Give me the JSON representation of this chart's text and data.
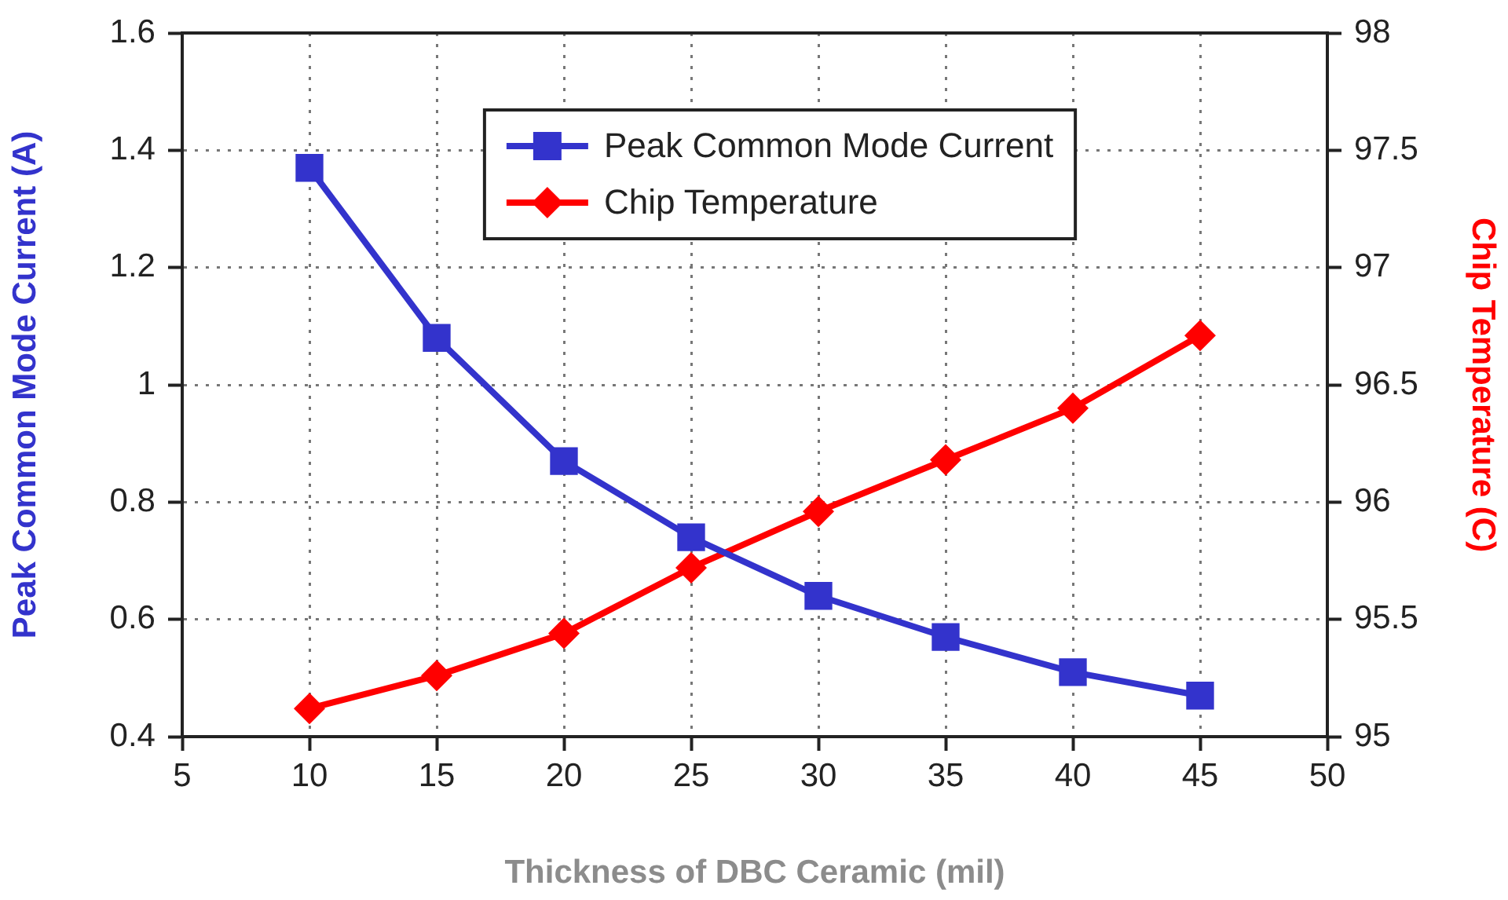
{
  "chart_data": {
    "type": "line",
    "xlabel": "Thickness of DBC Ceramic (mil)",
    "ylabel": "Peak Common Mode Current (A)",
    "y2label": "Chip Temperature (C)",
    "x": [
      10,
      15,
      20,
      25,
      30,
      35,
      40,
      45
    ],
    "xlim": [
      5,
      50
    ],
    "xticks": [
      5,
      10,
      15,
      20,
      25,
      30,
      35,
      40,
      45,
      50
    ],
    "ylim": [
      0.4,
      1.6
    ],
    "yticks": [
      0.4,
      0.6,
      0.8,
      1,
      1.2,
      1.4,
      1.6
    ],
    "y2lim": [
      95,
      98
    ],
    "y2ticks": [
      95,
      95.5,
      96,
      96.5,
      97,
      97.5,
      98
    ],
    "series": [
      {
        "name": "Peak Common Mode Current",
        "color": "#3333cc",
        "marker": "square",
        "values": [
          1.37,
          1.08,
          0.87,
          0.74,
          0.64,
          0.57,
          0.51,
          0.47
        ]
      },
      {
        "name": "Chip Temperature",
        "color": "#ff0000",
        "marker": "diamond",
        "axis": "y2",
        "values": [
          95.12,
          95.26,
          95.44,
          95.72,
          95.96,
          96.18,
          96.4,
          96.71
        ]
      }
    ],
    "grid": true,
    "legend": "top",
    "line_style": "solid"
  }
}
